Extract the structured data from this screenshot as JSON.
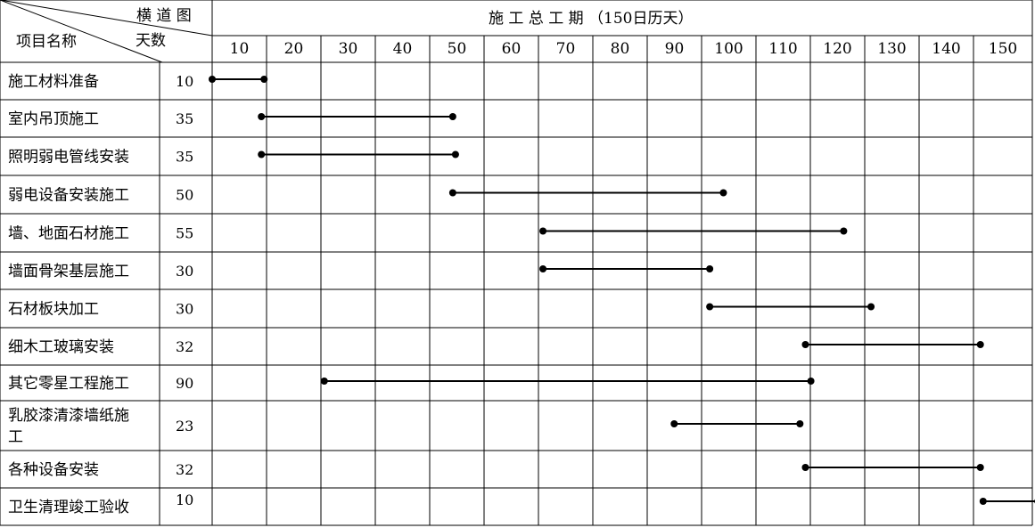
{
  "header": {
    "corner_top": "横 道 图",
    "corner_mid": "天数",
    "corner_left": "项目名称",
    "title": "施  工  总  工  期  （150日历天）"
  },
  "chart_data": {
    "type": "gantt",
    "title": "施  工  总  工  期  （150日历天）",
    "x_ticks": [
      10,
      20,
      30,
      40,
      50,
      60,
      70,
      80,
      90,
      100,
      110,
      120,
      130,
      140,
      150
    ],
    "xlim": [
      0,
      150
    ],
    "grid": true,
    "tasks": [
      {
        "name": "施工材料准备",
        "days": 10,
        "start": 0,
        "end": 9.5
      },
      {
        "name": "室内吊顶施工",
        "days": 35,
        "start": 9,
        "end": 44
      },
      {
        "name": "照明弱电管线安装",
        "days": 35,
        "start": 9,
        "end": 44.5
      },
      {
        "name": "弱电设备安装施工",
        "days": 50,
        "start": 44,
        "end": 93.5
      },
      {
        "name": "墙、地面石材施工",
        "days": 55,
        "start": 60.5,
        "end": 115.5
      },
      {
        "name": "墙面骨架基层施工",
        "days": 30,
        "start": 60.5,
        "end": 91
      },
      {
        "name": "石材板块加工",
        "days": 30,
        "start": 91,
        "end": 120.5
      },
      {
        "name": "细木工玻璃安装",
        "days": 32,
        "start": 108.5,
        "end": 140.5
      },
      {
        "name": "其它零星工程施工",
        "days": 90,
        "start": 20.5,
        "end": 109.5
      },
      {
        "name": "乳胶漆清漆墙纸施工",
        "days": 23,
        "start": 84.5,
        "end": 107.5
      },
      {
        "name": "各种设备安装",
        "days": 32,
        "start": 108.5,
        "end": 140.5
      },
      {
        "name": "卫生清理竣工验收",
        "days": 10,
        "start": 141,
        "end": 151
      }
    ]
  }
}
